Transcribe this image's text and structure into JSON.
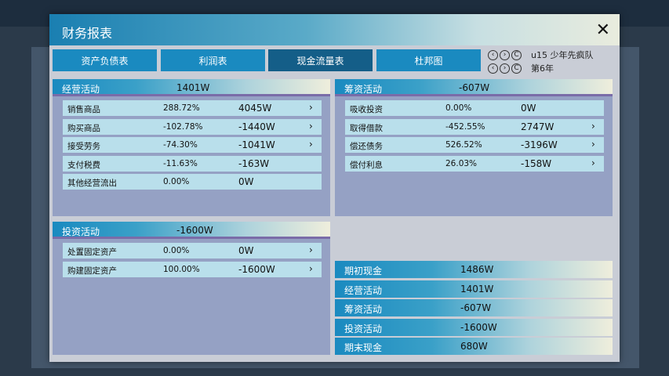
{
  "dialog": {
    "title": "财务报表"
  },
  "tabs": [
    {
      "label": "资产负债表"
    },
    {
      "label": "利润表"
    },
    {
      "label": "现金流量表"
    },
    {
      "label": "杜邦图"
    }
  ],
  "nav": {
    "team": "u15 少年先疯队",
    "year": "第6年"
  },
  "operating": {
    "name": "经营活动",
    "total": "1401W",
    "rows": [
      {
        "name": "销售商品",
        "pct": "288.72%",
        "value": "4045W",
        "arrow": true
      },
      {
        "name": "购买商品",
        "pct": "-102.78%",
        "value": "-1440W",
        "arrow": true
      },
      {
        "name": "接受劳务",
        "pct": "-74.30%",
        "value": "-1041W",
        "arrow": true
      },
      {
        "name": "支付税费",
        "pct": "-11.63%",
        "value": "-163W",
        "arrow": false
      },
      {
        "name": "其他经营流出",
        "pct": "0.00%",
        "value": "0W",
        "arrow": false
      }
    ]
  },
  "financing": {
    "name": "筹资活动",
    "total": "-607W",
    "rows": [
      {
        "name": "吸收投资",
        "pct": "0.00%",
        "value": "0W",
        "arrow": false
      },
      {
        "name": "取得借款",
        "pct": "-452.55%",
        "value": "2747W",
        "arrow": true
      },
      {
        "name": "偿还债务",
        "pct": "526.52%",
        "value": "-3196W",
        "arrow": true
      },
      {
        "name": "偿付利息",
        "pct": "26.03%",
        "value": "-158W",
        "arrow": true
      }
    ]
  },
  "investing": {
    "name": "投资活动",
    "total": "-1600W",
    "rows": [
      {
        "name": "处置固定资产",
        "pct": "0.00%",
        "value": "0W",
        "arrow": true
      },
      {
        "name": "购建固定资产",
        "pct": "100.00%",
        "value": "-1600W",
        "arrow": true
      }
    ]
  },
  "summary": [
    {
      "name": "期初现金",
      "value": "1486W"
    },
    {
      "name": "经营活动",
      "value": "1401W"
    },
    {
      "name": "筹资活动",
      "value": "-607W"
    },
    {
      "name": "投资活动",
      "value": "-1600W"
    },
    {
      "name": "期末现金",
      "value": "680W"
    }
  ]
}
